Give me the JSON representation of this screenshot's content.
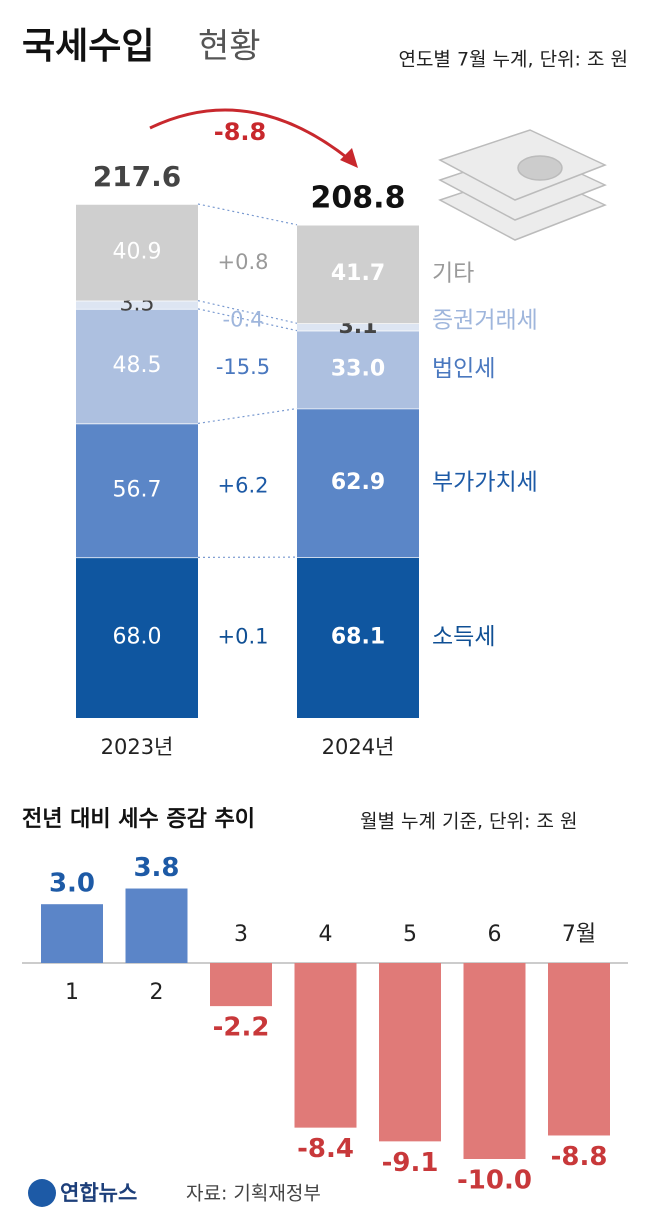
{
  "header": {
    "title": "국세수입",
    "title_suffix": "현황",
    "subtitle": "연도별 7월 누계, 단위: 조 원"
  },
  "chart_data": [
    {
      "type": "stacked_bar",
      "categories": [
        "2023년",
        "2024년"
      ],
      "totals": [
        217.6,
        208.8
      ],
      "total_change": -8.8,
      "series": [
        {
          "name": "소득세",
          "color": "#0f56a0",
          "label_color": "#0f4f94",
          "values": [
            68.0,
            68.1
          ],
          "value_labels": [
            "68.0",
            "68.1"
          ],
          "change": 0.1,
          "change_label": "+0.1"
        },
        {
          "name": "부가가치세",
          "color": "#5b86c7",
          "label_color": "#1d5aa6",
          "values": [
            56.7,
            62.9
          ],
          "value_labels": [
            "56.7",
            "62.9"
          ],
          "change": 6.2,
          "change_label": "+6.2"
        },
        {
          "name": "법인세",
          "color": "#adc0e0",
          "label_color": "#4a78bf",
          "values": [
            48.5,
            33.0
          ],
          "value_labels": [
            "48.5",
            "33.0"
          ],
          "change": -15.5,
          "change_label": "-15.5"
        },
        {
          "name": "증권거래세",
          "color": "#dde5f2",
          "label_color": "#9fb6dc",
          "values": [
            3.5,
            3.1
          ],
          "value_labels": [
            "3.5",
            "3.1"
          ],
          "change": -0.4,
          "change_label": "-0.4"
        },
        {
          "name": "기타",
          "color": "#cfcfcf",
          "label_color": "#9a9a9a",
          "values": [
            40.9,
            41.7
          ],
          "value_labels": [
            "40.9",
            "41.7"
          ],
          "change": 0.8,
          "change_label": "+0.8"
        }
      ]
    },
    {
      "type": "bar",
      "title": "전년 대비 세수 증감 추이",
      "subtitle": "월별 누계 기준, 단위: 조 원",
      "categories": [
        "1",
        "2",
        "3",
        "4",
        "5",
        "6",
        "7월"
      ],
      "values": [
        3.0,
        3.8,
        -2.2,
        -8.4,
        -9.1,
        -10.0,
        -8.8
      ],
      "value_labels": [
        "3.0",
        "3.8",
        "-2.2",
        "-8.4",
        "-9.1",
        "-10.0",
        "-8.8"
      ],
      "positive_color": "#5b85c8",
      "negative_color": "#e07a78",
      "positive_label_color": "#1d5aa6",
      "negative_label_color": "#c8383a"
    }
  ],
  "footer": {
    "logo": "연합뉴스",
    "source": "자료: 기획재정부"
  }
}
